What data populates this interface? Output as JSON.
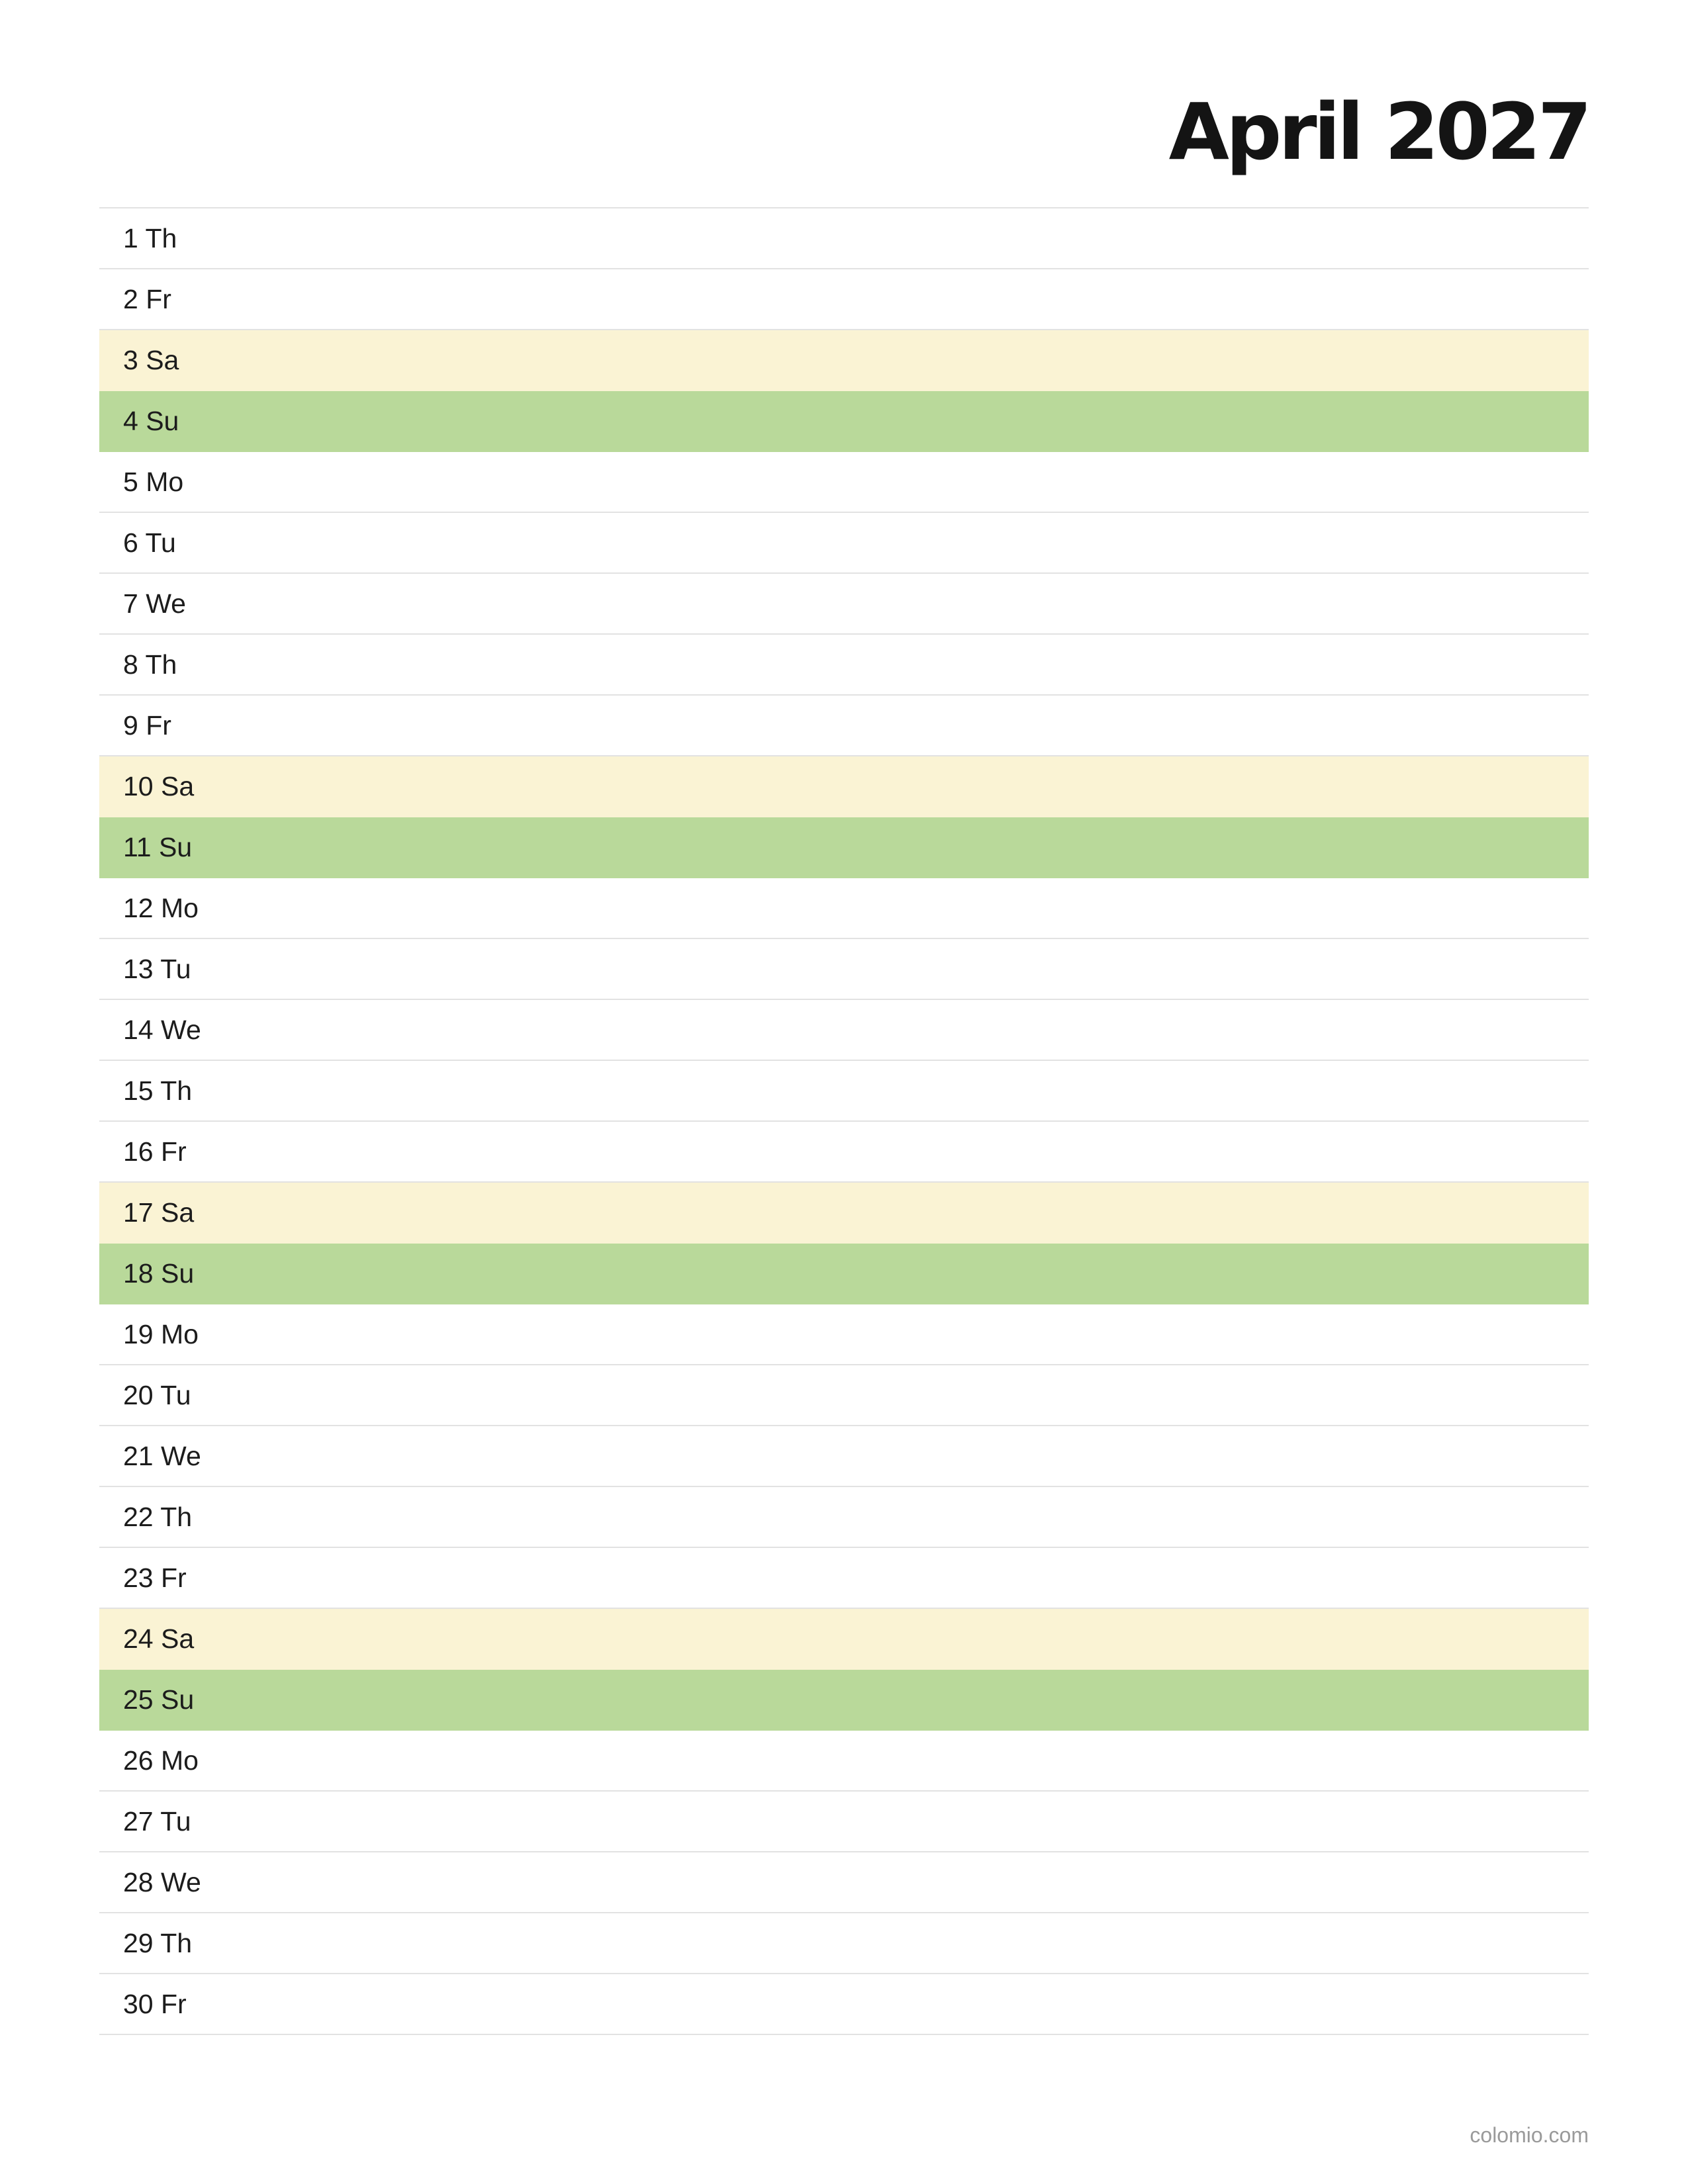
{
  "title": "April 2027",
  "days": [
    {
      "label": "1 Th",
      "type": "weekday"
    },
    {
      "label": "2 Fr",
      "type": "weekday"
    },
    {
      "label": "3 Sa",
      "type": "sat"
    },
    {
      "label": "4 Su",
      "type": "sun"
    },
    {
      "label": "5 Mo",
      "type": "weekday"
    },
    {
      "label": "6 Tu",
      "type": "weekday"
    },
    {
      "label": "7 We",
      "type": "weekday"
    },
    {
      "label": "8 Th",
      "type": "weekday"
    },
    {
      "label": "9 Fr",
      "type": "weekday"
    },
    {
      "label": "10 Sa",
      "type": "sat"
    },
    {
      "label": "11 Su",
      "type": "sun"
    },
    {
      "label": "12 Mo",
      "type": "weekday"
    },
    {
      "label": "13 Tu",
      "type": "weekday"
    },
    {
      "label": "14 We",
      "type": "weekday"
    },
    {
      "label": "15 Th",
      "type": "weekday"
    },
    {
      "label": "16 Fr",
      "type": "weekday"
    },
    {
      "label": "17 Sa",
      "type": "sat"
    },
    {
      "label": "18 Su",
      "type": "sun"
    },
    {
      "label": "19 Mo",
      "type": "weekday"
    },
    {
      "label": "20 Tu",
      "type": "weekday"
    },
    {
      "label": "21 We",
      "type": "weekday"
    },
    {
      "label": "22 Th",
      "type": "weekday"
    },
    {
      "label": "23 Fr",
      "type": "weekday"
    },
    {
      "label": "24 Sa",
      "type": "sat"
    },
    {
      "label": "25 Su",
      "type": "sun"
    },
    {
      "label": "26 Mo",
      "type": "weekday"
    },
    {
      "label": "27 Tu",
      "type": "weekday"
    },
    {
      "label": "28 We",
      "type": "weekday"
    },
    {
      "label": "29 Th",
      "type": "weekday"
    },
    {
      "label": "30 Fr",
      "type": "weekday"
    }
  ],
  "colors": {
    "saturday": "#faf3d4",
    "sunday": "#b9d99a",
    "rule": "#e2e2e2"
  },
  "footer": "colomio.com"
}
